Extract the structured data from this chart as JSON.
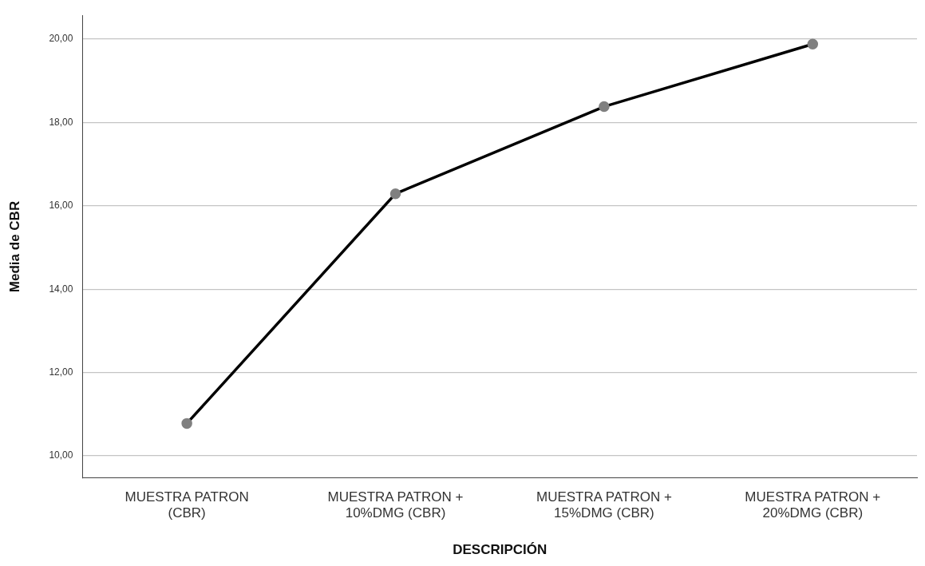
{
  "chart_data": {
    "type": "line",
    "xlabel": "DESCRIPCIÓN",
    "ylabel": "Media de CBR",
    "categories": [
      "MUESTRA PATRON\n(CBR)",
      "MUESTRA PATRON +\n10%DMG (CBR)",
      "MUESTRA PATRON +\n15%DMG (CBR)",
      "MUESTRA PATRON +\n20%DMG (CBR)"
    ],
    "series": [
      {
        "color": "#000000",
        "values": [
          10.78,
          16.29,
          18.38,
          19.88
        ]
      }
    ],
    "ylim": [
      9.47,
      20.57
    ],
    "yticks": [
      {
        "value": 10,
        "label": "10,00"
      },
      {
        "value": 12,
        "label": "12,00"
      },
      {
        "value": 14,
        "label": "14,00"
      },
      {
        "value": 16,
        "label": "16,00"
      },
      {
        "value": 18,
        "label": "18,00"
      },
      {
        "value": 20,
        "label": "20,00"
      }
    ],
    "grid": "y",
    "marker": "circle",
    "line_style": "solid",
    "legend": false
  }
}
